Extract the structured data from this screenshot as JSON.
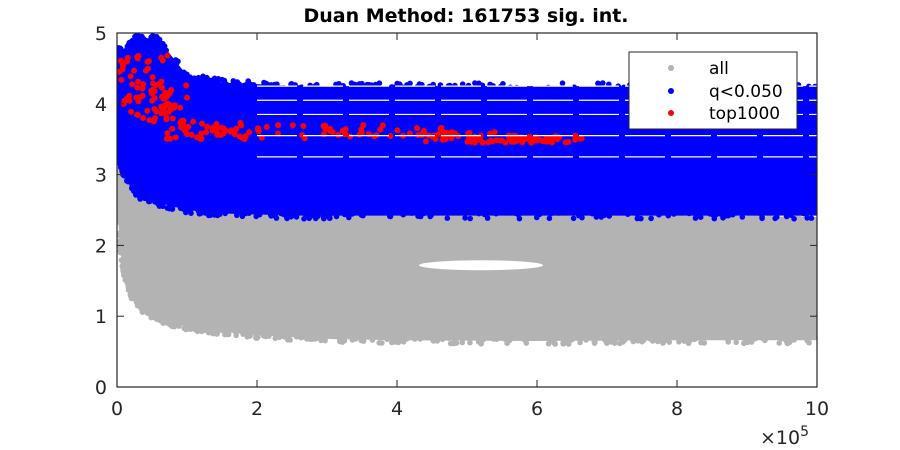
{
  "chart_data": {
    "type": "scatter",
    "title": "Duan Method: 161753 sig. int.",
    "xlabel": "",
    "ylabel": "",
    "xlim": [
      0,
      1000000
    ],
    "ylim": [
      0,
      5
    ],
    "x_ticks": [
      0,
      200000,
      400000,
      600000,
      800000,
      1000000
    ],
    "x_tick_labels": [
      "0",
      "2",
      "4",
      "6",
      "8",
      "10"
    ],
    "x_exponent_label": "×10",
    "x_exponent_power": "5",
    "y_ticks": [
      0,
      1,
      2,
      3,
      4,
      5
    ],
    "y_tick_labels": [
      "0",
      "1",
      "2",
      "3",
      "4",
      "5"
    ],
    "grid": false,
    "legend_position": "top-right",
    "series": [
      {
        "name": "all",
        "color": "#b3b3b3",
        "band": [
          [
            0,
            2.6,
            4.2
          ],
          [
            5000,
            1.9,
            3.9
          ],
          [
            10000,
            1.6,
            3.6
          ],
          [
            20000,
            1.3,
            3.3
          ],
          [
            40000,
            1.05,
            3.1
          ],
          [
            60000,
            0.95,
            3.0
          ],
          [
            100000,
            0.85,
            2.9
          ],
          [
            150000,
            0.78,
            2.8
          ],
          [
            200000,
            0.73,
            2.7
          ],
          [
            300000,
            0.68,
            2.6
          ],
          [
            400000,
            0.66,
            2.5
          ],
          [
            600000,
            0.65,
            2.45
          ],
          [
            800000,
            0.66,
            2.42
          ],
          [
            1000000,
            0.66,
            2.4
          ]
        ]
      },
      {
        "name": "q<0.050",
        "color": "#0000ff",
        "band": [
          [
            0,
            3.3,
            4.75
          ],
          [
            10000,
            3.0,
            4.75
          ],
          [
            30000,
            2.7,
            4.95
          ],
          [
            60000,
            2.6,
            4.9
          ],
          [
            100000,
            2.5,
            4.4
          ],
          [
            150000,
            2.45,
            4.3
          ],
          [
            260000,
            2.42,
            4.25
          ],
          [
            500000,
            2.42,
            4.25
          ],
          [
            1000000,
            2.42,
            4.25
          ]
        ]
      },
      {
        "name": "top1000",
        "color": "#ff0000",
        "clusters": [
          [
            0,
            80000,
            3.9,
            4.7
          ],
          [
            20000,
            100000,
            3.7,
            4.3
          ],
          [
            70000,
            190000,
            3.5,
            3.75
          ],
          [
            200000,
            480000,
            3.5,
            3.7
          ],
          [
            430000,
            560000,
            3.45,
            3.6
          ],
          [
            560000,
            670000,
            3.45,
            3.55
          ]
        ]
      }
    ]
  },
  "legend": {
    "items": [
      {
        "label": "all",
        "color": "#b3b3b3"
      },
      {
        "label": "q<0.050",
        "color": "#0000ff"
      },
      {
        "label": "top1000",
        "color": "#ff0000"
      }
    ]
  }
}
